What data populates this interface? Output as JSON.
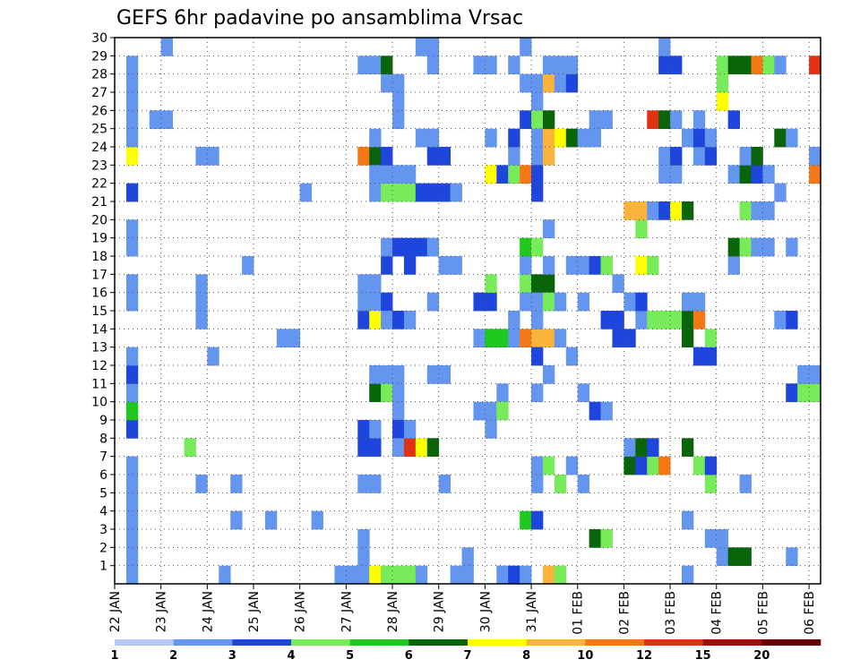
{
  "chart_data": {
    "type": "heatmap",
    "title": "GEFS 6hr padavine po ansamblima Vrsac",
    "xlabel": "",
    "ylabel": "",
    "x_tick_labels": [
      "22 JAN",
      "23 JAN",
      "24 JAN",
      "25 JAN",
      "26 JAN",
      "27 JAN",
      "28 JAN",
      "29 JAN",
      "30 JAN",
      "31 JAN",
      "01 FEB",
      "02 FEB",
      "03 FEB",
      "04 FEB",
      "05 FEB",
      "06 FEB"
    ],
    "y_tick_labels": [
      "1",
      "2",
      "3",
      "4",
      "5",
      "6",
      "7",
      "8",
      "9",
      "10",
      "11",
      "12",
      "13",
      "14",
      "15",
      "16",
      "17",
      "18",
      "19",
      "20",
      "21",
      "22",
      "23",
      "24",
      "25",
      "26",
      "27",
      "28",
      "29",
      "30"
    ],
    "xlim": [
      0,
      61
    ],
    "ylim": [
      0,
      30
    ],
    "grid": true,
    "colorbar": {
      "levels": [
        "1",
        "2",
        "3",
        "4",
        "5",
        "6",
        "7",
        "8",
        "10",
        "12",
        "15",
        "20"
      ],
      "colors": [
        "#b4c8f5",
        "#6496f0",
        "#1e46dc",
        "#78eb5a",
        "#1ec81e",
        "#0a640a",
        "#ffff00",
        "#fab43c",
        "#f57814",
        "#e13214",
        "#a00a0a",
        "#640000"
      ]
    },
    "cells": [
      [
        1,
        0,
        1
      ],
      [
        1,
        1,
        1
      ],
      [
        1,
        2,
        1
      ],
      [
        1,
        3,
        1
      ],
      [
        1,
        4,
        1
      ],
      [
        1,
        5,
        1
      ],
      [
        1,
        6,
        1
      ],
      [
        1,
        8,
        2
      ],
      [
        1,
        9,
        4
      ],
      [
        1,
        10,
        1
      ],
      [
        1,
        11,
        2
      ],
      [
        1,
        12,
        1
      ],
      [
        1,
        15,
        1
      ],
      [
        1,
        16,
        1
      ],
      [
        1,
        18,
        1
      ],
      [
        1,
        19,
        1
      ],
      [
        1,
        21,
        2
      ],
      [
        1,
        23,
        6
      ],
      [
        1,
        24,
        1
      ],
      [
        1,
        25,
        1
      ],
      [
        1,
        26,
        1
      ],
      [
        1,
        27,
        1
      ],
      [
        1,
        28,
        1
      ],
      [
        3,
        25,
        1
      ],
      [
        4,
        25,
        1
      ],
      [
        4,
        29,
        1
      ],
      [
        6,
        7,
        3
      ],
      [
        7,
        5,
        1
      ],
      [
        7,
        14,
        1
      ],
      [
        7,
        15,
        1
      ],
      [
        7,
        16,
        1
      ],
      [
        7,
        23,
        1
      ],
      [
        8,
        23,
        1
      ],
      [
        8,
        12,
        1
      ],
      [
        9,
        0,
        1
      ],
      [
        10,
        3,
        1
      ],
      [
        10,
        5,
        1
      ],
      [
        11,
        17,
        1
      ],
      [
        13,
        3,
        1
      ],
      [
        14,
        13,
        1
      ],
      [
        15,
        13,
        1
      ],
      [
        16,
        21,
        1
      ],
      [
        17,
        3,
        1
      ],
      [
        19,
        0,
        1
      ],
      [
        20,
        0,
        1
      ],
      [
        21,
        28,
        1
      ],
      [
        22,
        28,
        1
      ],
      [
        21,
        0,
        1
      ],
      [
        21,
        1,
        1
      ],
      [
        21,
        7,
        2
      ],
      [
        21,
        8,
        2
      ],
      [
        21,
        14,
        2
      ],
      [
        21,
        15,
        1
      ],
      [
        21,
        16,
        1
      ],
      [
        21,
        2,
        1
      ],
      [
        21,
        23,
        8
      ],
      [
        21,
        5,
        1
      ],
      [
        22,
        5,
        1
      ],
      [
        22,
        15,
        1
      ],
      [
        22,
        16,
        1
      ],
      [
        22,
        0,
        6
      ],
      [
        22,
        14,
        6
      ],
      [
        22,
        10,
        5
      ],
      [
        22,
        23,
        5
      ],
      [
        22,
        22,
        1
      ],
      [
        22,
        24,
        1
      ],
      [
        22,
        21,
        1
      ],
      [
        22,
        11,
        1
      ],
      [
        22,
        7,
        2
      ],
      [
        22,
        8,
        1
      ],
      [
        23,
        0,
        3
      ],
      [
        24,
        0,
        3
      ],
      [
        25,
        0,
        3
      ],
      [
        23,
        10,
        3
      ],
      [
        23,
        11,
        1
      ],
      [
        23,
        21,
        3
      ],
      [
        23,
        22,
        1
      ],
      [
        23,
        23,
        2
      ],
      [
        23,
        17,
        2
      ],
      [
        23,
        15,
        2
      ],
      [
        23,
        14,
        1
      ],
      [
        23,
        18,
        1
      ],
      [
        23,
        27,
        1
      ],
      [
        23,
        28,
        5
      ],
      [
        24,
        14,
        2
      ],
      [
        24,
        18,
        2
      ],
      [
        24,
        21,
        3
      ],
      [
        24,
        22,
        1
      ],
      [
        24,
        11,
        1
      ],
      [
        24,
        10,
        1
      ],
      [
        24,
        9,
        1
      ],
      [
        24,
        8,
        2
      ],
      [
        24,
        7,
        1
      ],
      [
        24,
        27,
        1
      ],
      [
        24,
        26,
        1
      ],
      [
        24,
        25,
        1
      ],
      [
        25,
        17,
        2
      ],
      [
        25,
        18,
        2
      ],
      [
        25,
        21,
        3
      ],
      [
        25,
        7,
        9
      ],
      [
        25,
        8,
        1
      ],
      [
        25,
        22,
        1
      ],
      [
        25,
        14,
        1
      ],
      [
        26,
        7,
        6
      ],
      [
        26,
        18,
        2
      ],
      [
        26,
        21,
        2
      ],
      [
        26,
        24,
        1
      ],
      [
        26,
        29,
        1
      ],
      [
        26,
        0,
        1
      ],
      [
        27,
        7,
        5
      ],
      [
        27,
        18,
        1
      ],
      [
        27,
        15,
        1
      ],
      [
        27,
        21,
        2
      ],
      [
        27,
        23,
        2
      ],
      [
        27,
        11,
        1
      ],
      [
        27,
        29,
        1
      ],
      [
        27,
        28,
        1
      ],
      [
        27,
        24,
        1
      ],
      [
        28,
        5,
        1
      ],
      [
        28,
        11,
        1
      ],
      [
        28,
        21,
        2
      ],
      [
        28,
        23,
        2
      ],
      [
        28,
        17,
        1
      ],
      [
        29,
        0,
        1
      ],
      [
        29,
        21,
        1
      ],
      [
        29,
        17,
        1
      ],
      [
        30,
        1,
        1
      ],
      [
        30,
        0,
        1
      ],
      [
        31,
        9,
        1
      ],
      [
        31,
        15,
        2
      ],
      [
        31,
        13,
        1
      ],
      [
        31,
        28,
        1
      ],
      [
        32,
        13,
        4
      ],
      [
        32,
        15,
        2
      ],
      [
        32,
        16,
        3
      ],
      [
        32,
        22,
        6
      ],
      [
        32,
        28,
        1
      ],
      [
        32,
        24,
        1
      ],
      [
        32,
        8,
        1
      ],
      [
        32,
        9,
        1
      ],
      [
        33,
        0,
        1
      ],
      [
        33,
        13,
        4
      ],
      [
        33,
        10,
        1
      ],
      [
        33,
        9,
        3
      ],
      [
        33,
        22,
        2
      ],
      [
        34,
        0,
        2
      ],
      [
        34,
        13,
        1
      ],
      [
        34,
        14,
        1
      ],
      [
        34,
        22,
        3
      ],
      [
        34,
        23,
        1
      ],
      [
        34,
        24,
        2
      ],
      [
        34,
        28,
        1
      ],
      [
        35,
        13,
        8
      ],
      [
        35,
        16,
        3
      ],
      [
        35,
        15,
        1
      ],
      [
        35,
        17,
        1
      ],
      [
        35,
        22,
        8
      ],
      [
        35,
        18,
        4
      ],
      [
        35,
        25,
        2
      ],
      [
        35,
        3,
        4
      ],
      [
        35,
        27,
        1
      ],
      [
        35,
        29,
        1
      ],
      [
        35,
        0,
        1
      ],
      [
        36,
        13,
        7
      ],
      [
        36,
        16,
        5
      ],
      [
        36,
        18,
        3
      ],
      [
        36,
        3,
        2
      ],
      [
        36,
        6,
        1
      ],
      [
        36,
        12,
        2
      ],
      [
        36,
        27,
        1
      ],
      [
        36,
        26,
        1
      ],
      [
        36,
        25,
        3
      ],
      [
        36,
        23,
        1
      ],
      [
        36,
        24,
        1
      ],
      [
        36,
        15,
        1
      ],
      [
        36,
        14,
        1
      ],
      [
        36,
        5,
        1
      ],
      [
        36,
        10,
        1
      ],
      [
        36,
        22,
        2
      ],
      [
        36,
        21,
        2
      ],
      [
        37,
        13,
        7
      ],
      [
        37,
        16,
        5
      ],
      [
        37,
        15,
        3
      ],
      [
        37,
        6,
        3
      ],
      [
        37,
        23,
        7
      ],
      [
        37,
        24,
        7
      ],
      [
        37,
        25,
        5
      ],
      [
        37,
        27,
        7
      ],
      [
        37,
        28,
        1
      ],
      [
        37,
        0,
        7
      ],
      [
        37,
        17,
        1
      ],
      [
        37,
        19,
        1
      ],
      [
        37,
        11,
        1
      ],
      [
        38,
        0,
        3
      ],
      [
        38,
        5,
        3
      ],
      [
        38,
        15,
        1
      ],
      [
        38,
        24,
        6
      ],
      [
        38,
        27,
        1
      ],
      [
        38,
        28,
        1
      ],
      [
        38,
        13,
        1
      ],
      [
        39,
        6,
        1
      ],
      [
        39,
        17,
        1
      ],
      [
        39,
        24,
        5
      ],
      [
        39,
        27,
        2
      ],
      [
        39,
        28,
        1
      ],
      [
        39,
        12,
        1
      ],
      [
        40,
        5,
        1
      ],
      [
        40,
        10,
        1
      ],
      [
        40,
        15,
        1
      ],
      [
        40,
        17,
        1
      ],
      [
        40,
        24,
        1
      ],
      [
        41,
        2,
        5
      ],
      [
        41,
        9,
        2
      ],
      [
        41,
        17,
        2
      ],
      [
        41,
        24,
        1
      ],
      [
        41,
        25,
        1
      ],
      [
        42,
        2,
        3
      ],
      [
        42,
        17,
        3
      ],
      [
        42,
        9,
        1
      ],
      [
        42,
        25,
        1
      ],
      [
        42,
        14,
        2
      ],
      [
        43,
        16,
        1
      ],
      [
        43,
        14,
        2
      ],
      [
        43,
        13,
        2
      ],
      [
        44,
        6,
        5
      ],
      [
        44,
        15,
        1
      ],
      [
        44,
        13,
        2
      ],
      [
        44,
        20,
        7
      ],
      [
        44,
        7,
        1
      ],
      [
        45,
        6,
        2
      ],
      [
        45,
        7,
        5
      ],
      [
        45,
        14,
        1
      ],
      [
        45,
        15,
        2
      ],
      [
        45,
        17,
        6
      ],
      [
        45,
        19,
        3
      ],
      [
        45,
        20,
        7
      ],
      [
        46,
        6,
        3
      ],
      [
        46,
        7,
        2
      ],
      [
        46,
        14,
        3
      ],
      [
        46,
        17,
        3
      ],
      [
        46,
        20,
        1
      ],
      [
        46,
        25,
        9
      ],
      [
        47,
        6,
        8
      ],
      [
        47,
        14,
        3
      ],
      [
        47,
        20,
        2
      ],
      [
        47,
        22,
        1
      ],
      [
        47,
        23,
        1
      ],
      [
        47,
        25,
        5
      ],
      [
        47,
        28,
        2
      ],
      [
        47,
        29,
        1
      ],
      [
        48,
        14,
        3
      ],
      [
        48,
        20,
        6
      ],
      [
        48,
        22,
        1
      ],
      [
        48,
        23,
        2
      ],
      [
        48,
        25,
        1
      ],
      [
        48,
        28,
        2
      ],
      [
        49,
        7,
        5
      ],
      [
        49,
        13,
        5
      ],
      [
        49,
        14,
        5
      ],
      [
        49,
        20,
        5
      ],
      [
        49,
        24,
        1
      ],
      [
        49,
        15,
        1
      ],
      [
        49,
        3,
        1
      ],
      [
        49,
        0,
        1
      ],
      [
        50,
        12,
        2
      ],
      [
        50,
        14,
        8
      ],
      [
        50,
        15,
        1
      ],
      [
        50,
        6,
        3
      ],
      [
        50,
        23,
        1
      ],
      [
        50,
        24,
        2
      ],
      [
        50,
        25,
        1
      ],
      [
        51,
        5,
        3
      ],
      [
        51,
        6,
        2
      ],
      [
        51,
        12,
        2
      ],
      [
        51,
        13,
        3
      ],
      [
        51,
        23,
        2
      ],
      [
        51,
        24,
        1
      ],
      [
        51,
        2,
        1
      ],
      [
        52,
        2,
        1
      ],
      [
        52,
        1,
        1
      ],
      [
        52,
        26,
        6
      ],
      [
        52,
        28,
        3
      ],
      [
        52,
        27,
        3
      ],
      [
        53,
        1,
        5
      ],
      [
        53,
        17,
        1
      ],
      [
        53,
        18,
        5
      ],
      [
        53,
        22,
        1
      ],
      [
        53,
        25,
        2
      ],
      [
        53,
        28,
        5
      ],
      [
        54,
        1,
        5
      ],
      [
        54,
        5,
        1
      ],
      [
        54,
        18,
        3
      ],
      [
        54,
        20,
        3
      ],
      [
        54,
        22,
        5
      ],
      [
        54,
        23,
        1
      ],
      [
        54,
        28,
        5
      ],
      [
        55,
        18,
        1
      ],
      [
        55,
        20,
        1
      ],
      [
        55,
        22,
        2
      ],
      [
        55,
        23,
        5
      ],
      [
        55,
        28,
        8
      ],
      [
        56,
        18,
        1
      ],
      [
        56,
        20,
        1
      ],
      [
        56,
        22,
        1
      ],
      [
        56,
        28,
        3
      ],
      [
        57,
        14,
        1
      ],
      [
        57,
        21,
        1
      ],
      [
        57,
        24,
        5
      ],
      [
        57,
        28,
        1
      ],
      [
        58,
        14,
        2
      ],
      [
        58,
        10,
        2
      ],
      [
        58,
        18,
        1
      ],
      [
        58,
        24,
        1
      ],
      [
        58,
        1,
        1
      ],
      [
        59,
        10,
        3
      ],
      [
        59,
        11,
        1
      ],
      [
        60,
        10,
        3
      ],
      [
        60,
        11,
        1
      ],
      [
        60,
        22,
        8
      ],
      [
        60,
        28,
        9
      ],
      [
        60,
        23,
        1
      ]
    ]
  }
}
